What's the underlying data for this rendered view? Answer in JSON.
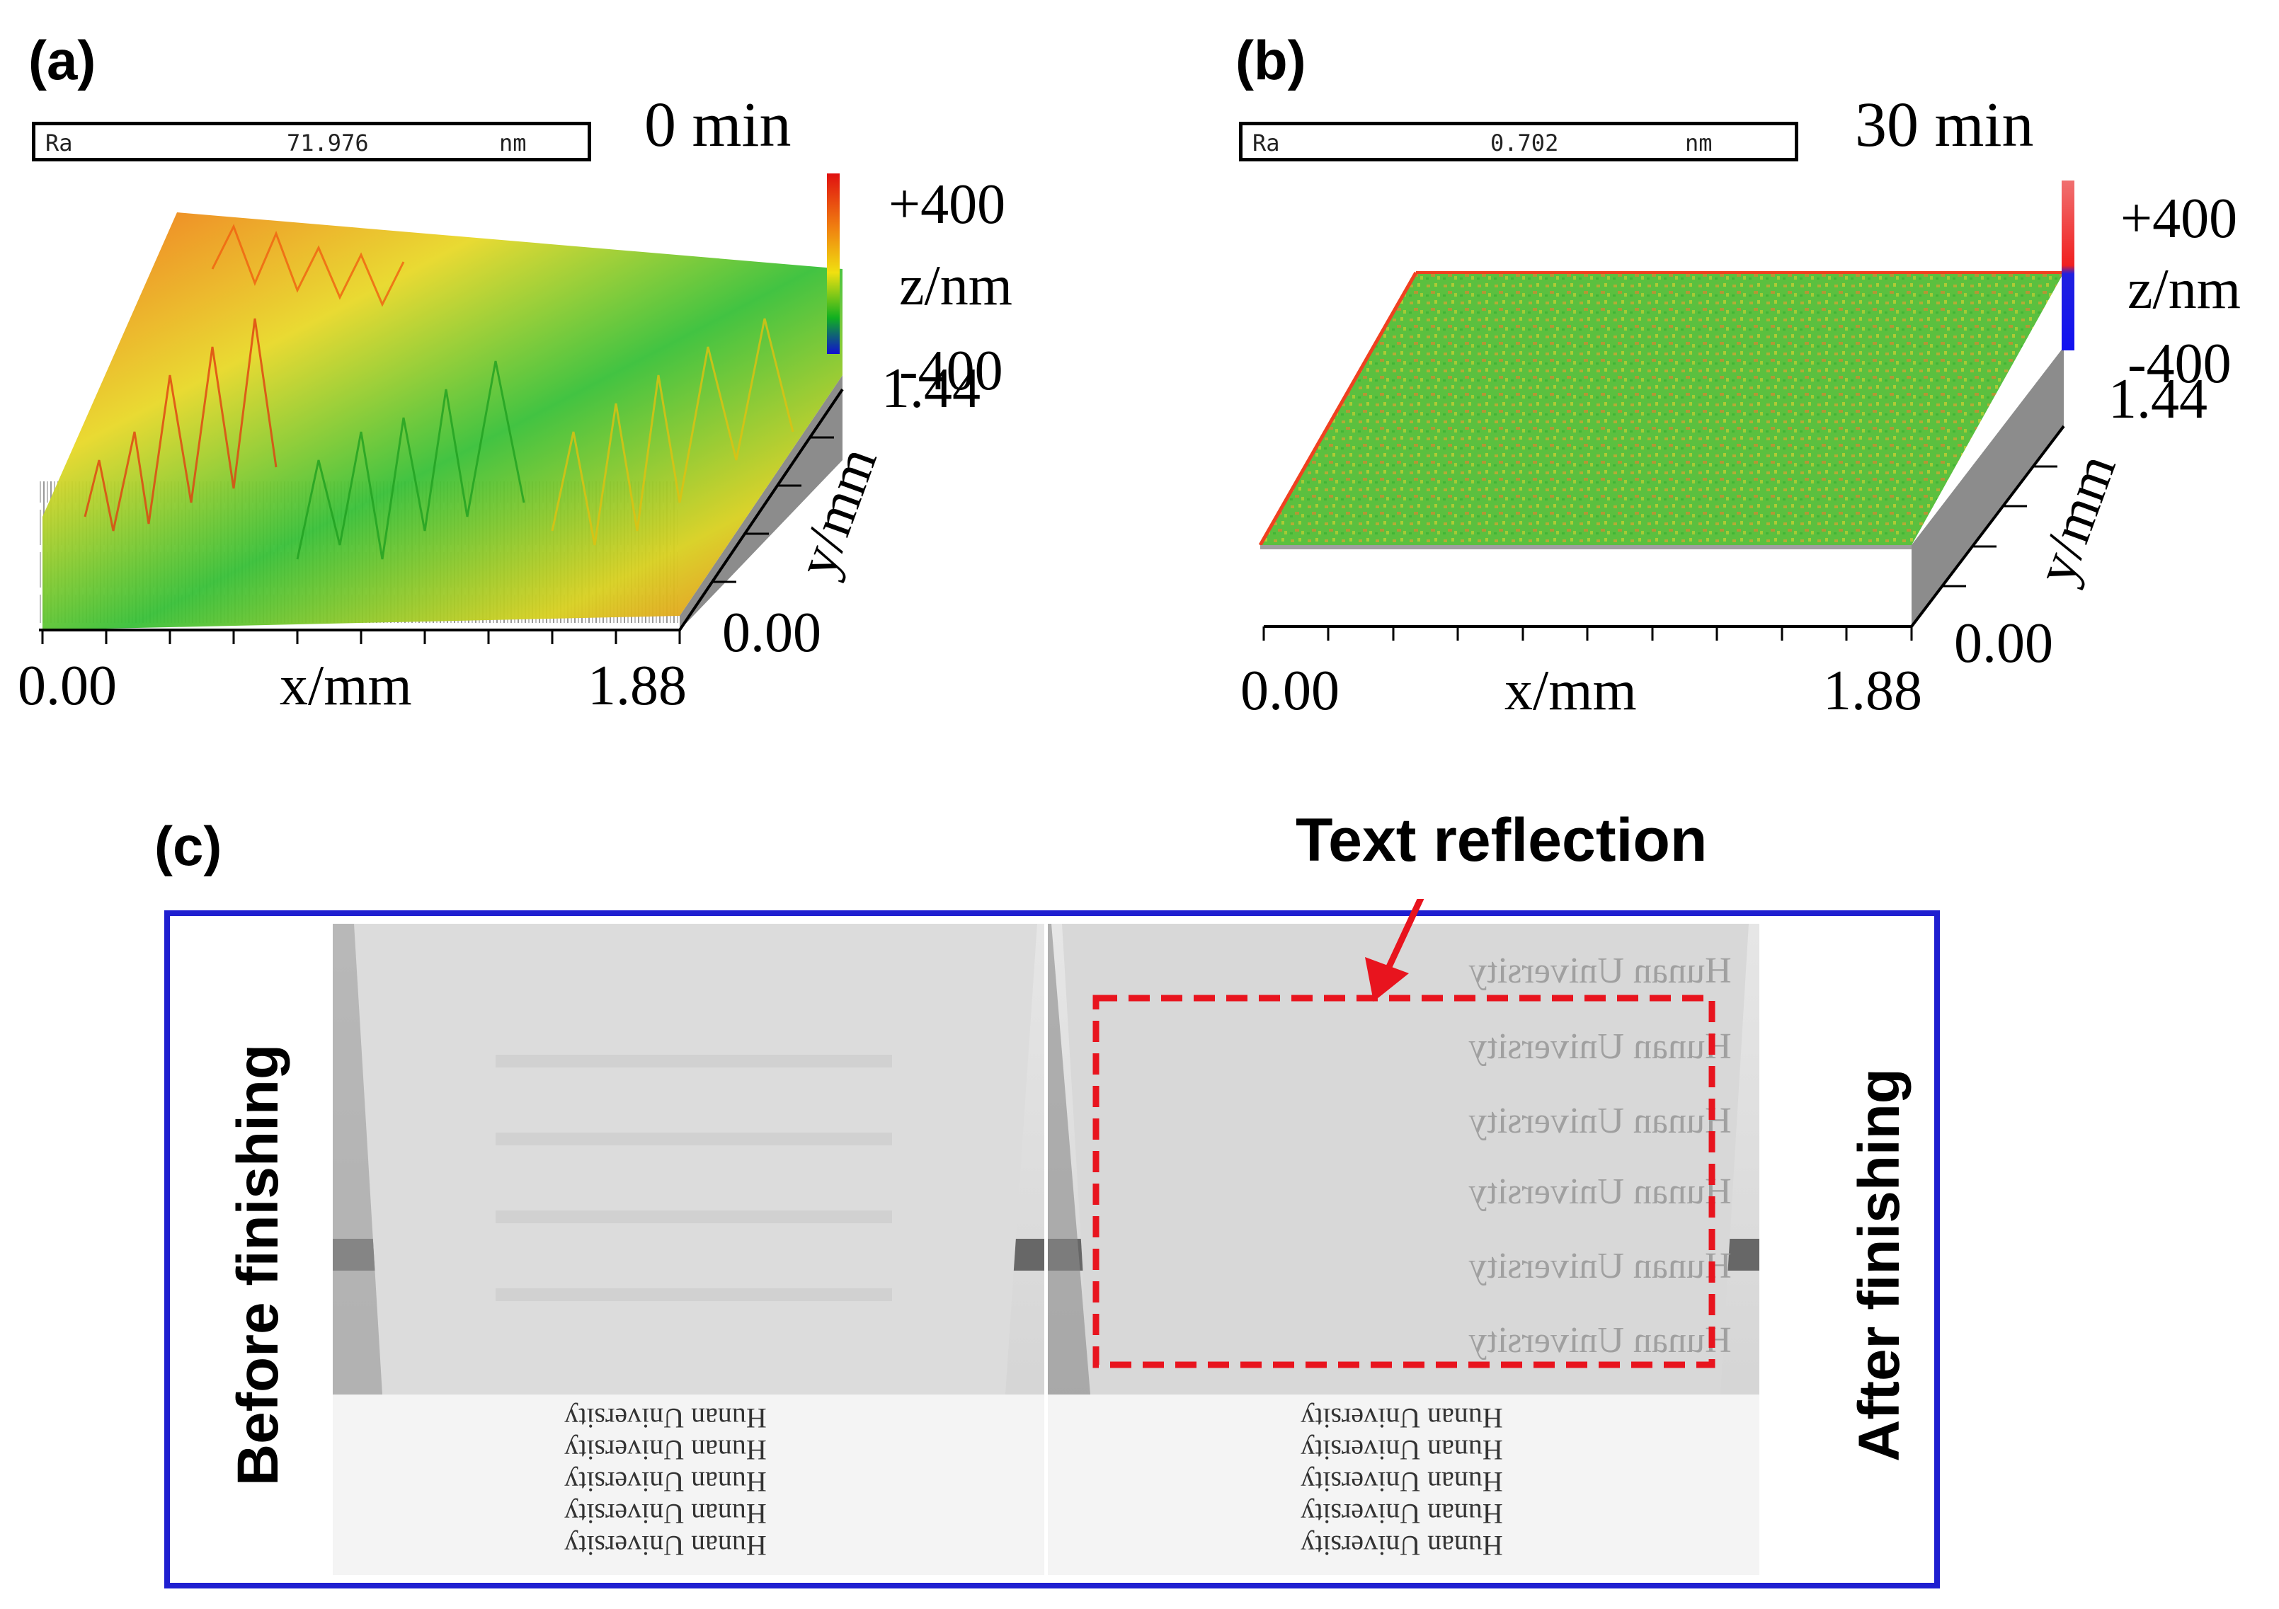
{
  "panel_a": {
    "label": "(a)",
    "ra_name": "Ra",
    "ra_value": "71.976",
    "ra_unit": "nm",
    "time": "0 min",
    "z_max": "+400",
    "z_label": "z/nm",
    "z_min": "-400",
    "y_max": "1.44",
    "y_label": "y/mm",
    "y_min": "0.00",
    "x_min": "0.00",
    "x_label": "x/mm",
    "x_max": "1.88"
  },
  "panel_b": {
    "label": "(b)",
    "ra_name": "Ra",
    "ra_value": "0.702",
    "ra_unit": "nm",
    "time": "30 min",
    "z_max": "+400",
    "z_label": "z/nm",
    "z_min": "-400",
    "y_max": "1.44",
    "y_label": "y/mm",
    "y_min": "0.00",
    "x_min": "0.00",
    "x_label": "x/mm",
    "x_max": "1.88"
  },
  "panel_c": {
    "label": "(c)",
    "annotation": "Text reflection",
    "left_caption": "Before finishing",
    "right_caption": "After finishing",
    "printed_text": "Hunan University"
  },
  "colors": {
    "frame_blue": "#1f1fd0",
    "highlight_red": "#e8141e",
    "colormap": [
      "#1010d0",
      "#10a020",
      "#f0e010",
      "#f07010",
      "#e01010"
    ]
  }
}
